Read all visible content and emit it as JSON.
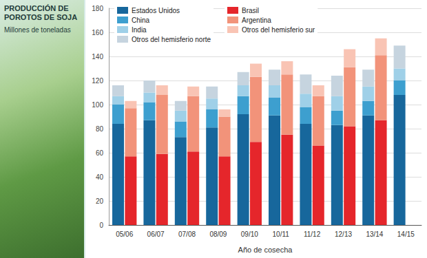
{
  "chart_data": {
    "type": "bar",
    "title": "PRODUCCIÓN DE POROTOS DE SOJA",
    "subtitle": "Millones de toneladas",
    "x_label": "Año de cosecha",
    "categories": [
      "05/06",
      "06/07",
      "07/08",
      "08/09",
      "09/10",
      "10/11",
      "11/12",
      "12/13",
      "13/14",
      "14/15"
    ],
    "series": [
      [
        {
          "name": "Estados Unidos",
          "color": "#17679c",
          "values": [
            84,
            87,
            73,
            81,
            92,
            91,
            84,
            83,
            91,
            108
          ]
        },
        {
          "name": "China",
          "color": "#3d9fcf",
          "values": [
            16,
            15,
            13,
            15,
            15,
            15,
            14,
            12,
            12,
            12
          ]
        },
        {
          "name": "India",
          "color": "#9fd0e8",
          "values": [
            7,
            8,
            9,
            9,
            9,
            10,
            11,
            12,
            12,
            10
          ]
        },
        {
          "name": "Otros del hemisferio norte",
          "color": "#c6d4df",
          "values": [
            9,
            10,
            8,
            10,
            11,
            13,
            16,
            17,
            14,
            19
          ]
        }
      ],
      [
        {
          "name": "Brasil",
          "color": "#e5262b",
          "values": [
            57,
            59,
            61,
            57,
            69,
            75,
            66,
            82,
            87,
            null
          ]
        },
        {
          "name": "Argentina",
          "color": "#f2937a",
          "values": [
            40,
            49,
            46,
            33,
            54,
            50,
            41,
            49,
            54,
            null
          ]
        },
        {
          "name": "Otros del hemisferio sur",
          "color": "#f9c4b4",
          "values": [
            6,
            8,
            8,
            6,
            11,
            11,
            9,
            15,
            14,
            null
          ]
        }
      ]
    ],
    "ylim": [
      0,
      180
    ],
    "yticks": [
      0,
      20,
      40,
      60,
      80,
      100,
      120,
      140,
      160,
      180
    ],
    "grid": true,
    "stacked": true,
    "legend": "top-left"
  }
}
